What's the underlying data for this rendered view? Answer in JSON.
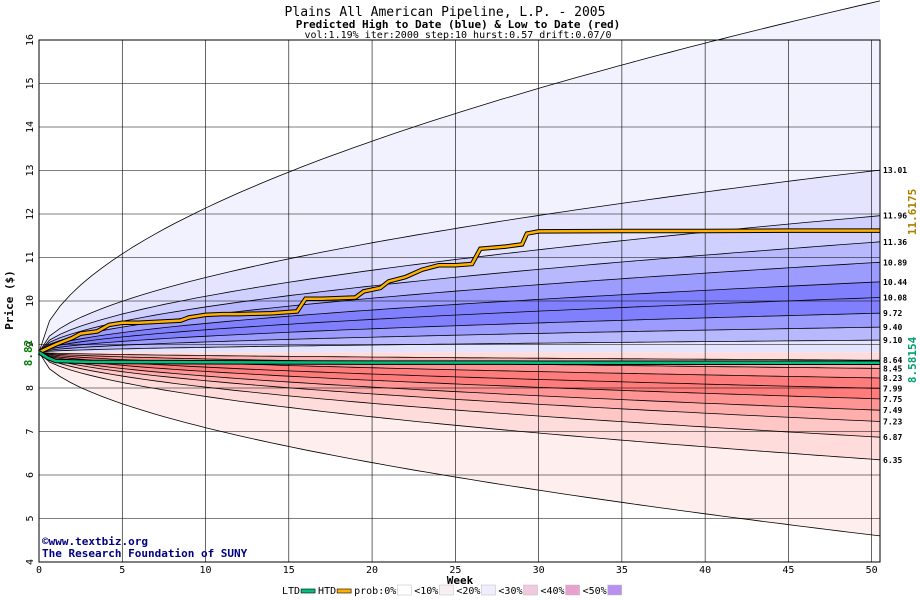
{
  "chart_data": {
    "type": "area",
    "title": "Plains All American Pipeline, L.P. - 2005",
    "subtitle": "Predicted High to Date (blue) &  Low to Date (red)",
    "params": "vol:1.19% iter:2000 step:10 hurst:0.57 drift:0.07/0",
    "xlabel": "Week",
    "ylabel": "Price ($)",
    "xlim": [
      0,
      50.5
    ],
    "ylim": [
      4,
      16
    ],
    "xticks": [
      0,
      5,
      10,
      15,
      20,
      25,
      30,
      35,
      40,
      45,
      50
    ],
    "yticks": [
      4,
      5,
      6,
      7,
      8,
      9,
      10,
      11,
      12,
      13,
      14,
      15,
      16
    ],
    "grid": true,
    "start_price": 8.82,
    "start_label": "8.82",
    "high_quantiles_end": [
      9.1,
      9.4,
      9.72,
      10.08,
      10.44,
      10.89,
      11.36,
      11.96,
      13.01
    ],
    "high_labels": [
      "9.10",
      "9.40",
      "9.72",
      "10.08",
      "10.44",
      "10.89",
      "11.36",
      "11.96",
      "13.01"
    ],
    "high_max_end": 16.9,
    "low_quantiles_end": [
      8.64,
      8.45,
      8.23,
      7.99,
      7.75,
      7.49,
      7.23,
      6.87,
      6.35
    ],
    "low_labels": [
      "8.64",
      "8.45",
      "8.23",
      "7.99",
      "7.75",
      "7.49",
      "7.23",
      "6.87",
      "6.35"
    ],
    "low_min_end": 4.6,
    "htd_series": {
      "name": "HTD",
      "value_label": "11.6175",
      "points": [
        [
          0,
          8.82
        ],
        [
          1,
          9.0
        ],
        [
          2,
          9.15
        ],
        [
          2.5,
          9.25
        ],
        [
          3.5,
          9.3
        ],
        [
          4.2,
          9.45
        ],
        [
          5,
          9.5
        ],
        [
          6,
          9.5
        ],
        [
          7,
          9.52
        ],
        [
          8.5,
          9.55
        ],
        [
          9,
          9.62
        ],
        [
          10,
          9.68
        ],
        [
          11,
          9.7
        ],
        [
          12,
          9.7
        ],
        [
          14,
          9.72
        ],
        [
          15.5,
          9.76
        ],
        [
          16,
          10.05
        ],
        [
          17,
          10.05
        ],
        [
          19,
          10.08
        ],
        [
          19.5,
          10.22
        ],
        [
          20.5,
          10.3
        ],
        [
          21,
          10.45
        ],
        [
          22,
          10.55
        ],
        [
          23,
          10.72
        ],
        [
          24,
          10.82
        ],
        [
          25,
          10.82
        ],
        [
          26,
          10.85
        ],
        [
          26.5,
          11.2
        ],
        [
          28,
          11.25
        ],
        [
          29,
          11.3
        ],
        [
          29.3,
          11.55
        ],
        [
          30,
          11.6
        ],
        [
          35,
          11.61
        ],
        [
          40,
          11.61
        ],
        [
          45,
          11.6175
        ],
        [
          50.5,
          11.6175
        ]
      ]
    },
    "ltd_series": {
      "name": "LTD",
      "value_label": "8.58154",
      "points": [
        [
          0,
          8.82
        ],
        [
          0.5,
          8.7
        ],
        [
          1,
          8.62
        ],
        [
          3,
          8.6
        ],
        [
          10,
          8.59
        ],
        [
          20,
          8.585
        ],
        [
          30,
          8.582
        ],
        [
          50.5,
          8.58154
        ]
      ]
    },
    "legend": {
      "placement": "bottom",
      "items": [
        "LTD",
        "HTD",
        "prob:0%",
        "<10%",
        "<20%",
        "<30%",
        "<40%",
        "<50%"
      ]
    },
    "colors": {
      "background": "#ffffff",
      "grid": "#000000",
      "htd_line": "#ffb000",
      "ltd_line": "#00c080",
      "start_label": "#008000",
      "htd_label": "#b08000",
      "ltd_label": "#00a070",
      "blue_bands": [
        "#f2f2ff",
        "#e4e4ff",
        "#d0d0ff",
        "#b8b8ff",
        "#9c9cff",
        "#8080ff"
      ],
      "red_bands": [
        "#ffeeee",
        "#ffdcdc",
        "#ffc6c6",
        "#ffaeae",
        "#ff9494",
        "#ff7c7c"
      ],
      "legend_swatches": [
        "#ffffff",
        "#f8f0f0",
        "#eeeeff",
        "#f0c8e0",
        "#e8a0d0",
        "#b890f0"
      ]
    }
  },
  "credits": {
    "copyright_symbol": "©",
    "site": "www.textbiz.org",
    "org": "The Research Foundation of SUNY"
  }
}
